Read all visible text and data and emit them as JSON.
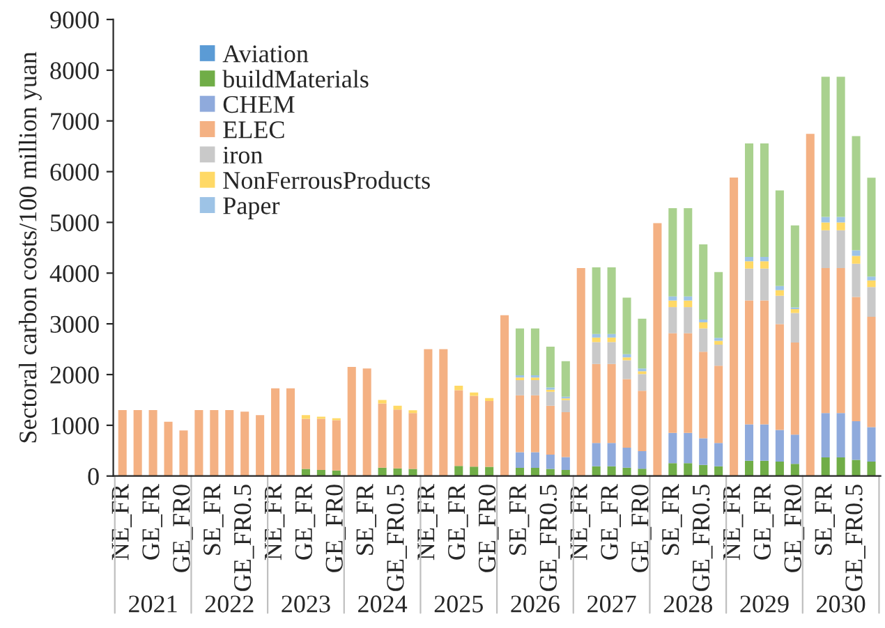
{
  "chart_data": {
    "type": "bar",
    "stacked": true,
    "ylabel": "Sectoral carbon costs/100 million yuan",
    "categories": [
      "NE_FR",
      null,
      "GE_FR",
      null,
      "GE_FR0",
      null,
      "SE_FR",
      null,
      "GE_FR0.5",
      null,
      "NE_FR",
      null,
      "GE_FR",
      null,
      "GE_FR0",
      null,
      "SE_FR",
      null,
      "GE_FR0.5",
      null,
      "NE_FR",
      null,
      "GE_FR",
      null,
      "GE_FR0",
      null,
      "SE_FR",
      null,
      "GE_FR0.5",
      null,
      "NE_FR",
      null,
      "GE_FR",
      null,
      "GE_FR0",
      null,
      "SE_FR",
      null,
      "GE_FR0.5",
      null,
      "NE_FR",
      null,
      "GE_FR",
      null,
      "GE_FR0",
      null,
      "SE_FR",
      null,
      "GE_FR0.5",
      null
    ],
    "annotations": [
      "2021",
      "2022",
      "2023",
      "2024",
      "2025",
      "2026",
      "2027",
      "2028",
      "2029",
      "2030"
    ],
    "series": [
      {
        "name": "Aviation",
        "color": "#5b9bd5",
        "values": [
          0,
          0,
          0,
          0,
          0,
          0,
          0,
          0,
          0,
          0,
          0,
          0,
          0,
          0,
          0,
          0,
          0,
          0,
          0,
          0,
          0,
          0,
          0,
          0,
          0,
          0,
          0,
          0,
          0,
          0,
          0,
          0,
          0,
          0,
          0,
          0,
          0,
          0,
          0,
          0,
          0,
          0,
          0,
          0,
          0,
          0,
          0,
          0,
          0,
          0
        ]
      },
      {
        "name": "buildMaterials",
        "color": "#70ad47",
        "values": [
          0,
          0,
          0,
          0,
          0,
          0,
          0,
          0,
          0,
          0,
          0,
          0,
          140,
          120,
          110,
          0,
          0,
          165,
          150,
          140,
          0,
          0,
          200,
          185,
          180,
          0,
          160,
          160,
          140,
          120,
          0,
          190,
          190,
          165,
          145,
          0,
          255,
          255,
          220,
          190,
          0,
          300,
          300,
          285,
          240,
          0,
          365,
          365,
          320,
          285
        ]
      },
      {
        "name": "CHEM",
        "color": "#8faadc",
        "values": [
          0,
          0,
          0,
          0,
          0,
          0,
          0,
          0,
          0,
          0,
          0,
          0,
          0,
          0,
          0,
          0,
          0,
          0,
          0,
          0,
          0,
          0,
          0,
          0,
          0,
          0,
          310,
          310,
          280,
          255,
          0,
          460,
          460,
          395,
          345,
          0,
          595,
          595,
          525,
          460,
          0,
          720,
          720,
          625,
          575,
          0,
          875,
          875,
          760,
          680
        ]
      },
      {
        "name": "ELEC",
        "color": "#f4b183",
        "values": [
          1300,
          1300,
          1300,
          1070,
          900,
          1300,
          1300,
          1300,
          1270,
          1200,
          1730,
          1730,
          990,
          1010,
          990,
          2150,
          2120,
          1265,
          1160,
          1100,
          2500,
          2500,
          1490,
          1395,
          1300,
          3170,
          1120,
          1120,
          965,
          885,
          4100,
          1560,
          1560,
          1350,
          1190,
          4985,
          1965,
          1965,
          1705,
          1525,
          5885,
          2440,
          2440,
          2085,
          1815,
          6745,
          2860,
          2860,
          2450,
          2175
        ]
      },
      {
        "name": "iron",
        "color": "#c9c9c9",
        "values": [
          0,
          0,
          0,
          0,
          0,
          0,
          0,
          0,
          0,
          0,
          0,
          0,
          0,
          0,
          0,
          0,
          0,
          0,
          0,
          0,
          0,
          0,
          0,
          0,
          0,
          0,
          300,
          300,
          275,
          235,
          0,
          430,
          430,
          370,
          330,
          0,
          515,
          515,
          460,
          415,
          0,
          630,
          630,
          560,
          585,
          0,
          745,
          745,
          655,
          585
        ]
      },
      {
        "name": "NonFerrousProducts",
        "color": "#ffd966",
        "values": [
          0,
          0,
          0,
          0,
          0,
          0,
          0,
          0,
          0,
          0,
          0,
          0,
          70,
          40,
          40,
          0,
          0,
          70,
          75,
          55,
          0,
          0,
          90,
          65,
          55,
          0,
          50,
          50,
          40,
          35,
          0,
          90,
          90,
          60,
          55,
          0,
          130,
          130,
          120,
          75,
          0,
          145,
          145,
          110,
          75,
          0,
          155,
          155,
          155,
          130
        ]
      },
      {
        "name": "Paper",
        "color": "#9dc3e6",
        "values": [
          0,
          0,
          0,
          0,
          0,
          0,
          0,
          0,
          0,
          0,
          0,
          0,
          0,
          0,
          0,
          0,
          0,
          0,
          0,
          0,
          0,
          0,
          0,
          0,
          0,
          0,
          45,
          45,
          45,
          35,
          0,
          70,
          70,
          60,
          55,
          0,
          80,
          80,
          55,
          60,
          0,
          85,
          85,
          80,
          35,
          0,
          110,
          110,
          110,
          75
        ]
      },
      {
        "color": "#a9d18e",
        "values": [
          0,
          0,
          0,
          0,
          0,
          0,
          0,
          0,
          0,
          0,
          0,
          0,
          0,
          0,
          0,
          0,
          0,
          0,
          0,
          0,
          0,
          0,
          0,
          0,
          0,
          0,
          925,
          925,
          805,
          700,
          0,
          1315,
          1315,
          1115,
          980,
          0,
          1740,
          1740,
          1480,
          1295,
          0,
          2235,
          2235,
          1885,
          1615,
          0,
          2760,
          2760,
          2250,
          1950
        ]
      }
    ],
    "ylim": [
      0,
      9000
    ],
    "yticks": [
      0,
      1000,
      2000,
      3000,
      4000,
      5000,
      6000,
      7000,
      8000,
      9000
    ],
    "grid": false,
    "legend": "top left"
  }
}
